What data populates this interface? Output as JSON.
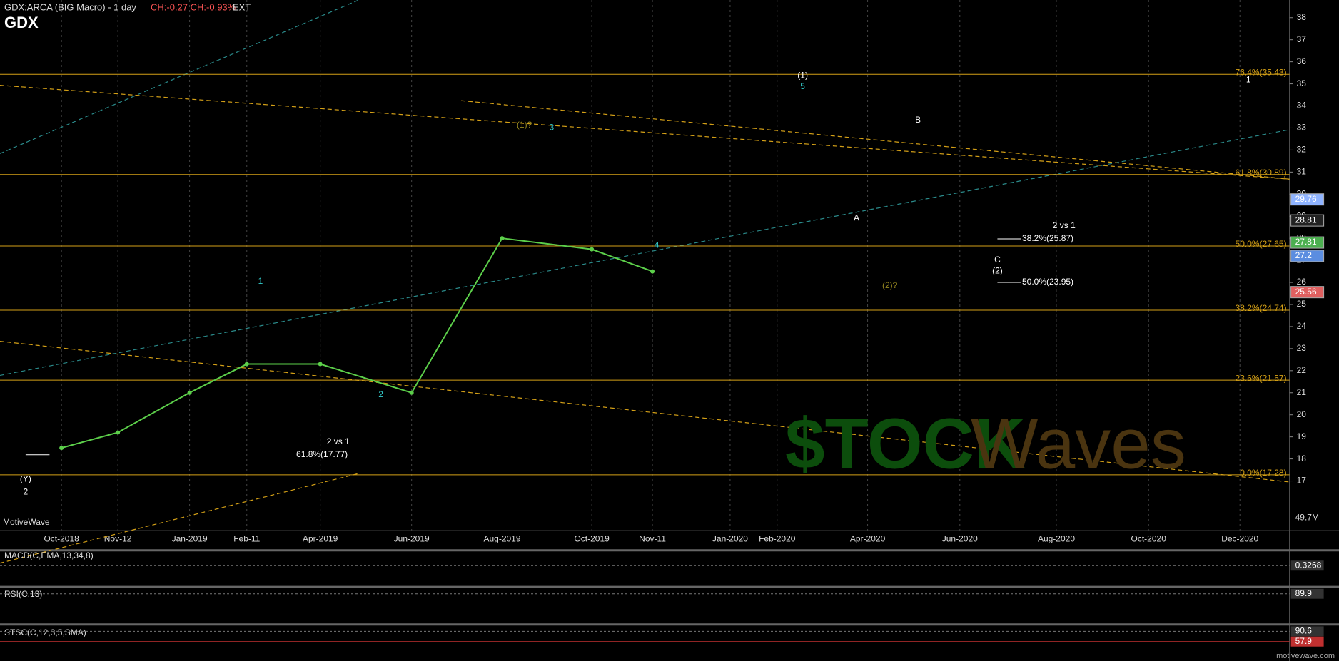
{
  "chart_data": {
    "type": "line",
    "title": "GDX:ARCA (BIG Macro) - 1 day",
    "change": "CH:-0.27 CH:-0.93%",
    "session": "EXT",
    "symbol": "GDX",
    "categories": [
      "Oct-2018",
      "Nov-12",
      "Jan-2019",
      "Feb-11",
      "Apr-2019",
      "Jun-2019",
      "Aug-2019",
      "Oct-2019",
      "Nov-11",
      "Jan-2020",
      "Feb-2020",
      "Apr-2020",
      "Jun-2020",
      "Aug-2020",
      "Oct-2020",
      "Dec-2020"
    ],
    "series": [
      {
        "name": "GDX",
        "color": "#5ccf4a",
        "values": [
          18.5,
          19.2,
          21.0,
          22.3,
          22.3,
          21.0,
          28.0,
          27.5,
          26.5,
          null,
          null,
          null,
          null,
          null,
          null,
          null
        ]
      }
    ],
    "ylim": [
      15.6,
      38.8
    ],
    "yticks": [
      17,
      18,
      19,
      20,
      21,
      22,
      23,
      24,
      25,
      26,
      27,
      28,
      29,
      30,
      31,
      32,
      33,
      34,
      35,
      36,
      37,
      38
    ],
    "levels": [
      {
        "label": "76.4%(35.43)",
        "value": 35.43
      },
      {
        "label": "61.8%(30.89)",
        "value": 30.89
      },
      {
        "label": "50.0%(27.65)",
        "value": 27.65
      },
      {
        "label": "38.2%(24.74)",
        "value": 24.74
      },
      {
        "label": "23.6%(21.57)",
        "value": 21.57
      },
      {
        "label": "0.0%(17.28)",
        "value": 17.28
      }
    ],
    "level_color": "#d4a017",
    "price_tags": [
      {
        "value": 29.76,
        "color": "#8fb3ff"
      },
      {
        "value": 28.81,
        "color": "#222"
      },
      {
        "value": 27.81,
        "color": "#4caf50"
      },
      {
        "value": 27.2,
        "color": "#5b8de0"
      },
      {
        "value": 25.56,
        "color": "#e06060"
      }
    ],
    "annotations": [
      {
        "text": "(1)",
        "color": "#ffffff"
      },
      {
        "text": "5",
        "color": "#33cccc"
      },
      {
        "text": "1",
        "color": "#ffffff"
      },
      {
        "text": "B",
        "color": "#ffffff"
      },
      {
        "text": "A",
        "color": "#ffffff"
      },
      {
        "text": "C",
        "color": "#ffffff"
      },
      {
        "text": "(2)",
        "color": "#ffffff"
      },
      {
        "text": "(2)?",
        "color": "#9a8a20"
      },
      {
        "text": "(1)?",
        "color": "#9a8a20"
      },
      {
        "text": "3",
        "color": "#33cccc"
      },
      {
        "text": "1",
        "color": "#33cccc"
      },
      {
        "text": "2",
        "color": "#33cccc"
      },
      {
        "text": "4",
        "color": "#33cccc"
      },
      {
        "text": "(Y)",
        "color": "#ffffff"
      },
      {
        "text": "2",
        "color": "#ffffff"
      },
      {
        "text": "2 vs 1",
        "color": "#ffffff"
      },
      {
        "text": "2 vs 1",
        "color": "#ffffff"
      },
      {
        "text": "38.2%(25.87)",
        "color": "#ffffff"
      },
      {
        "text": "50.0%(23.95)",
        "color": "#ffffff"
      },
      {
        "text": "61.8%(17.77)",
        "color": "#ffffff"
      }
    ],
    "watermark": [
      "$TOCK",
      "Waves"
    ],
    "volume_label": "49.7M",
    "platform": "MotiveWave",
    "site": "motivewave.com",
    "indicators": [
      {
        "label": "MACD(C,EMA,13,34,8)",
        "values": [
          0.3268
        ]
      },
      {
        "label": "RSI(C,13)",
        "values": [
          89.9
        ]
      },
      {
        "label": "STSC(C,12,3,5,SMA)",
        "values": [
          90.6,
          57.9
        ]
      }
    ]
  }
}
